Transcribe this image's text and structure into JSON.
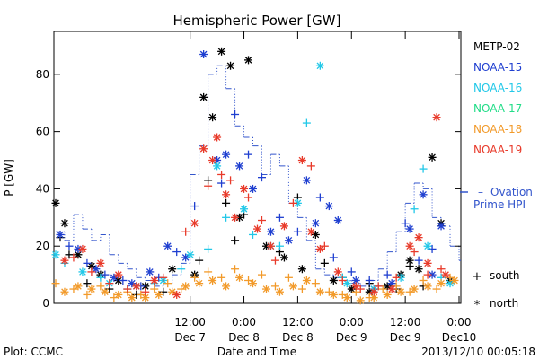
{
  "chart_data": {
    "type": "scatter",
    "title": "Hemispheric Power [GW]",
    "ylabel": "P [GW]",
    "xlabel": "Date and Time",
    "ylim": [
      0,
      95
    ],
    "yticks": [
      0,
      20,
      40,
      60,
      80
    ],
    "xlim": [
      "2013-12-06 06:00",
      "2013-12-10 00:00"
    ],
    "xticks": [
      {
        "time": "2013-12-07 12:00",
        "line1": "12:00",
        "line2": "Dec 7"
      },
      {
        "time": "2013-12-08 00:00",
        "line1": "0:00",
        "line2": "Dec 8"
      },
      {
        "time": "2013-12-08 12:00",
        "line1": "12:00",
        "line2": "Dec 8"
      },
      {
        "time": "2013-12-09 00:00",
        "line1": "0:00",
        "line2": "Dec 9"
      },
      {
        "time": "2013-12-09 12:00",
        "line1": "12:00",
        "line2": "Dec 9"
      },
      {
        "time": "2013-12-10 00:00",
        "line1": "0:00",
        "line2": "Dec10"
      }
    ],
    "legend": {
      "placement": "right",
      "satellites": [
        {
          "name": "METP-02",
          "color": "#000000"
        },
        {
          "name": "NOAA-15",
          "color": "#1f3fd0"
        },
        {
          "name": "NOAA-16",
          "color": "#22c8e8"
        },
        {
          "name": "NOAA-17",
          "color": "#22dd88"
        },
        {
          "name": "NOAA-18",
          "color": "#f29a2a"
        },
        {
          "name": "NOAA-19",
          "color": "#e83a2a"
        }
      ],
      "ovation_label_line1": "Ovation",
      "ovation_label_line2": "Prime HPI",
      "ovation_color": "#3355cc",
      "south_label": "south",
      "north_label": "north",
      "south_symbol": "+",
      "north_symbol": "*"
    },
    "ovation_prime_hpi": {
      "hours": [
        0,
        2,
        4,
        6,
        8,
        10,
        12,
        14,
        16,
        18,
        20,
        22,
        24,
        26,
        28,
        30,
        32,
        34,
        36,
        38,
        40,
        42,
        44,
        46,
        48,
        50,
        52,
        54,
        56,
        58,
        60,
        62,
        64,
        66,
        68,
        70,
        72,
        74,
        76,
        78,
        80,
        82,
        84,
        86,
        88,
        90
      ],
      "values": [
        25,
        22,
        31,
        26,
        22,
        24,
        17,
        14,
        12,
        9,
        8,
        6,
        7,
        10,
        14,
        45,
        55,
        80,
        83,
        75,
        62,
        58,
        55,
        45,
        52,
        48,
        35,
        30,
        22,
        12,
        10,
        9,
        8,
        7,
        6,
        8,
        12,
        18,
        25,
        35,
        42,
        40,
        30,
        27,
        20,
        15
      ]
    },
    "series": [
      {
        "name": "METP-02",
        "symbol": "north",
        "points": [
          [
            0,
            35
          ],
          [
            2,
            28
          ],
          [
            5,
            17
          ],
          [
            8,
            13
          ],
          [
            10,
            10
          ],
          [
            14,
            8
          ],
          [
            20,
            6
          ],
          [
            26,
            12
          ],
          [
            31,
            10
          ],
          [
            33,
            72
          ],
          [
            35,
            65
          ],
          [
            37,
            88
          ],
          [
            39,
            83
          ],
          [
            41,
            30
          ],
          [
            43,
            85
          ],
          [
            47,
            20
          ],
          [
            51,
            16
          ],
          [
            55,
            12
          ],
          [
            58,
            24
          ],
          [
            62,
            8
          ],
          [
            66,
            5
          ],
          [
            70,
            4
          ],
          [
            74,
            6
          ],
          [
            77,
            10
          ],
          [
            79,
            15
          ],
          [
            81,
            12
          ],
          [
            84,
            51
          ],
          [
            86,
            28
          ],
          [
            88,
            8
          ]
        ]
      },
      {
        "name": "METP-02",
        "symbol": "south",
        "points": [
          [
            1,
            23
          ],
          [
            3,
            17
          ],
          [
            7,
            7
          ],
          [
            12,
            5
          ],
          [
            18,
            3
          ],
          [
            24,
            4
          ],
          [
            32,
            15
          ],
          [
            34,
            43
          ],
          [
            38,
            35
          ],
          [
            40,
            22
          ],
          [
            42,
            31
          ],
          [
            50,
            18
          ],
          [
            54,
            37
          ],
          [
            60,
            14
          ],
          [
            64,
            9
          ],
          [
            70,
            7
          ],
          [
            76,
            5
          ],
          [
            79,
            13
          ],
          [
            82,
            6
          ]
        ]
      },
      {
        "name": "NOAA-15",
        "symbol": "north",
        "points": [
          [
            1,
            24
          ],
          [
            5,
            19
          ],
          [
            9,
            12
          ],
          [
            13,
            9
          ],
          [
            17,
            7
          ],
          [
            21,
            11
          ],
          [
            25,
            20
          ],
          [
            29,
            16
          ],
          [
            33,
            87
          ],
          [
            36,
            50
          ],
          [
            38,
            52
          ],
          [
            41,
            48
          ],
          [
            44,
            40
          ],
          [
            48,
            25
          ],
          [
            52,
            22
          ],
          [
            56,
            43
          ],
          [
            58,
            28
          ],
          [
            61,
            34
          ],
          [
            63,
            29
          ],
          [
            67,
            8
          ],
          [
            71,
            5
          ],
          [
            75,
            7
          ],
          [
            79,
            26
          ],
          [
            82,
            38
          ],
          [
            84,
            10
          ],
          [
            86,
            27
          ]
        ]
      },
      {
        "name": "NOAA-15",
        "symbol": "south",
        "points": [
          [
            3,
            20
          ],
          [
            7,
            14
          ],
          [
            11,
            10
          ],
          [
            15,
            8
          ],
          [
            19,
            6
          ],
          [
            23,
            9
          ],
          [
            27,
            18
          ],
          [
            31,
            34
          ],
          [
            37,
            42
          ],
          [
            40,
            66
          ],
          [
            43,
            52
          ],
          [
            46,
            44
          ],
          [
            50,
            30
          ],
          [
            54,
            25
          ],
          [
            59,
            37
          ],
          [
            62,
            16
          ],
          [
            66,
            11
          ],
          [
            70,
            8
          ],
          [
            74,
            10
          ],
          [
            78,
            28
          ],
          [
            81,
            15
          ],
          [
            84,
            19
          ]
        ]
      },
      {
        "name": "NOAA-16",
        "symbol": "north",
        "points": [
          [
            0,
            17
          ],
          [
            6,
            11
          ],
          [
            12,
            7
          ],
          [
            18,
            6
          ],
          [
            24,
            8
          ],
          [
            30,
            17
          ],
          [
            36,
            48
          ],
          [
            42,
            33
          ],
          [
            48,
            20
          ],
          [
            54,
            35
          ],
          [
            59,
            83
          ],
          [
            65,
            7
          ],
          [
            71,
            5
          ],
          [
            77,
            9
          ],
          [
            83,
            20
          ],
          [
            88,
            7
          ]
        ]
      },
      {
        "name": "NOAA-16",
        "symbol": "south",
        "points": [
          [
            2,
            14
          ],
          [
            10,
            9
          ],
          [
            16,
            5
          ],
          [
            22,
            7
          ],
          [
            28,
            12
          ],
          [
            34,
            19
          ],
          [
            38,
            30
          ],
          [
            44,
            24
          ],
          [
            50,
            20
          ],
          [
            56,
            63
          ],
          [
            64,
            9
          ],
          [
            72,
            6
          ],
          [
            80,
            33
          ],
          [
            82,
            47
          ],
          [
            86,
            9
          ]
        ]
      },
      {
        "name": "NOAA-18",
        "symbol": "north",
        "points": [
          [
            2,
            4
          ],
          [
            5,
            6
          ],
          [
            8,
            5
          ],
          [
            11,
            4
          ],
          [
            14,
            3
          ],
          [
            17,
            2
          ],
          [
            20,
            2
          ],
          [
            23,
            3
          ],
          [
            26,
            4
          ],
          [
            29,
            6
          ],
          [
            32,
            7
          ],
          [
            35,
            8
          ],
          [
            38,
            6
          ],
          [
            41,
            9
          ],
          [
            44,
            7
          ],
          [
            47,
            5
          ],
          [
            50,
            4
          ],
          [
            53,
            6
          ],
          [
            56,
            8
          ],
          [
            59,
            4
          ],
          [
            62,
            3
          ],
          [
            65,
            2
          ],
          [
            68,
            1
          ],
          [
            71,
            2
          ],
          [
            74,
            3
          ],
          [
            77,
            4
          ],
          [
            80,
            5
          ],
          [
            83,
            6
          ],
          [
            86,
            7
          ],
          [
            89,
            8
          ]
        ]
      },
      {
        "name": "NOAA-18",
        "symbol": "south",
        "points": [
          [
            0,
            7
          ],
          [
            4,
            5
          ],
          [
            7,
            3
          ],
          [
            10,
            6
          ],
          [
            13,
            2
          ],
          [
            16,
            4
          ],
          [
            19,
            3
          ],
          [
            22,
            5
          ],
          [
            25,
            7
          ],
          [
            28,
            5
          ],
          [
            31,
            9
          ],
          [
            34,
            11
          ],
          [
            37,
            9
          ],
          [
            40,
            12
          ],
          [
            43,
            8
          ],
          [
            46,
            10
          ],
          [
            49,
            6
          ],
          [
            52,
            9
          ],
          [
            55,
            5
          ],
          [
            58,
            7
          ],
          [
            61,
            4
          ],
          [
            64,
            3
          ],
          [
            67,
            4
          ],
          [
            70,
            2
          ],
          [
            73,
            5
          ],
          [
            76,
            6
          ],
          [
            79,
            4
          ],
          [
            82,
            8
          ],
          [
            85,
            5
          ],
          [
            88,
            9
          ]
        ]
      },
      {
        "name": "NOAA-19",
        "symbol": "north",
        "points": [
          [
            2,
            15
          ],
          [
            6,
            19
          ],
          [
            10,
            14
          ],
          [
            14,
            10
          ],
          [
            18,
            6
          ],
          [
            22,
            8
          ],
          [
            27,
            3
          ],
          [
            31,
            28
          ],
          [
            33,
            54
          ],
          [
            35,
            50
          ],
          [
            36,
            58
          ],
          [
            38,
            38
          ],
          [
            40,
            30
          ],
          [
            42,
            40
          ],
          [
            45,
            26
          ],
          [
            48,
            20
          ],
          [
            51,
            27
          ],
          [
            55,
            50
          ],
          [
            57,
            25
          ],
          [
            59,
            19
          ],
          [
            63,
            11
          ],
          [
            67,
            6
          ],
          [
            71,
            4
          ],
          [
            75,
            5
          ],
          [
            79,
            20
          ],
          [
            81,
            23
          ],
          [
            83,
            14
          ],
          [
            85,
            65
          ],
          [
            87,
            10
          ]
        ]
      },
      {
        "name": "NOAA-19",
        "symbol": "south",
        "points": [
          [
            4,
            16
          ],
          [
            8,
            11
          ],
          [
            12,
            7
          ],
          [
            16,
            5
          ],
          [
            20,
            4
          ],
          [
            24,
            9
          ],
          [
            29,
            25
          ],
          [
            34,
            41
          ],
          [
            37,
            45
          ],
          [
            39,
            43
          ],
          [
            43,
            37
          ],
          [
            46,
            29
          ],
          [
            49,
            15
          ],
          [
            53,
            35
          ],
          [
            57,
            48
          ],
          [
            60,
            20
          ],
          [
            64,
            8
          ],
          [
            68,
            5
          ],
          [
            72,
            6
          ],
          [
            76,
            9
          ],
          [
            80,
            18
          ],
          [
            83,
            10
          ],
          [
            86,
            12
          ]
        ]
      }
    ]
  },
  "footer": {
    "left": "Plot: CCMC",
    "right": "2013/12/10 00:05:18"
  }
}
